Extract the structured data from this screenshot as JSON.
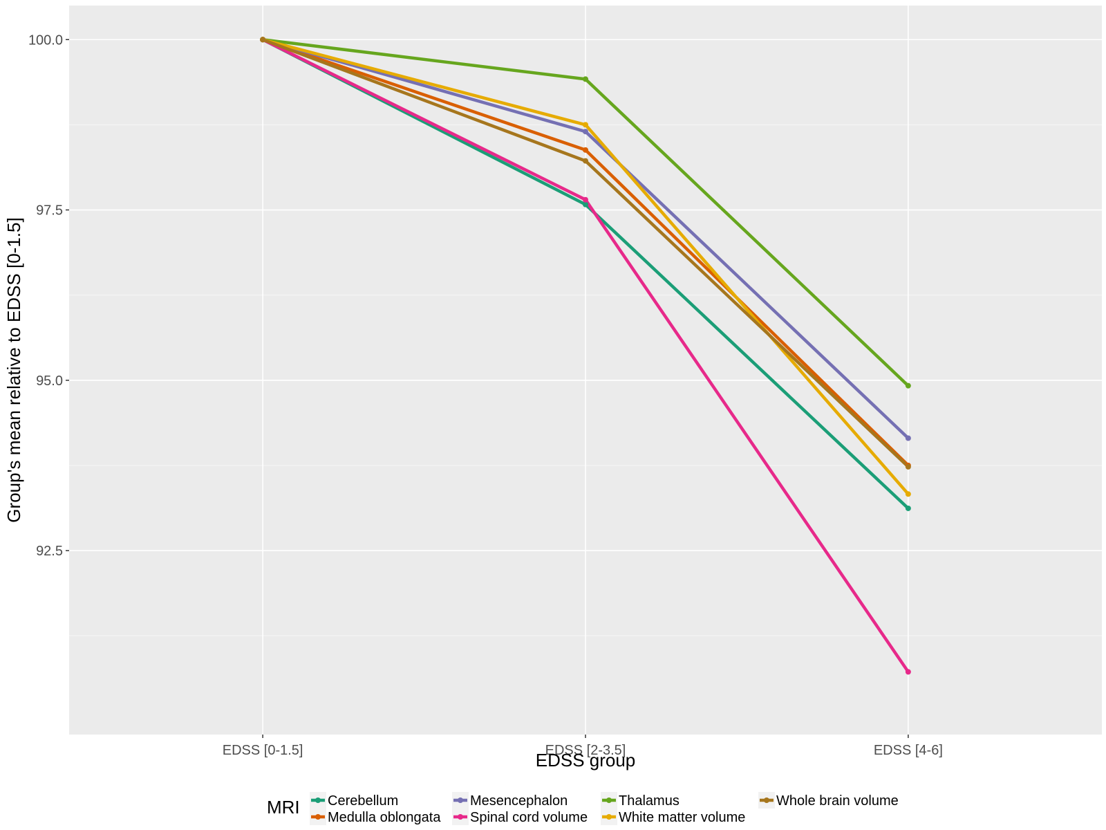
{
  "chart_data": {
    "type": "line",
    "title": "",
    "xlabel": "EDSS group",
    "ylabel": "Group's mean relative to EDSS [0-1.5]",
    "categories": [
      "EDSS [0-1.5]",
      "EDSS [2-3.5]",
      "EDSS [4-6]"
    ],
    "ylim": [
      89.8,
      100.5
    ],
    "yticks": [
      92.5,
      95.0,
      97.5,
      100.0
    ],
    "ytick_labels": [
      "92.5",
      "95.0",
      "97.5",
      "100.0"
    ],
    "grid": true,
    "legend": {
      "title": "MRI",
      "position": "bottom"
    },
    "series": [
      {
        "name": "Cerebellum",
        "color": "#1B9E77",
        "values": [
          100.0,
          97.58,
          93.12
        ]
      },
      {
        "name": "Medulla oblongata",
        "color": "#D95F02",
        "values": [
          100.0,
          98.38,
          93.75
        ]
      },
      {
        "name": "Mesencephalon",
        "color": "#7570B3",
        "values": [
          100.0,
          98.65,
          94.15
        ]
      },
      {
        "name": "Spinal cord volume",
        "color": "#E7298A",
        "values": [
          100.0,
          97.65,
          90.72
        ]
      },
      {
        "name": "Thalamus",
        "color": "#66A61E",
        "values": [
          100.0,
          99.42,
          94.92
        ]
      },
      {
        "name": "White matter volume",
        "color": "#E6AB02",
        "values": [
          100.0,
          98.75,
          93.33
        ]
      },
      {
        "name": "Whole brain volume",
        "color": "#A6761D",
        "values": [
          100.0,
          98.22,
          93.73
        ]
      }
    ]
  }
}
